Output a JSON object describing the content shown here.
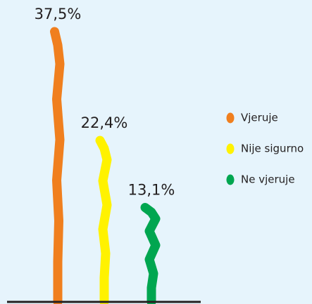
{
  "chart_data": {
    "type": "bar",
    "categories": [
      "Vjeruje",
      "Nije sigurno",
      "Ne vjeruje"
    ],
    "values": [
      37.5,
      22.4,
      13.1
    ],
    "value_labels": [
      "37,5%",
      "22,4%",
      "13,1%"
    ],
    "colors": [
      "#f07f1e",
      "#fff200",
      "#00a650"
    ]
  }
}
